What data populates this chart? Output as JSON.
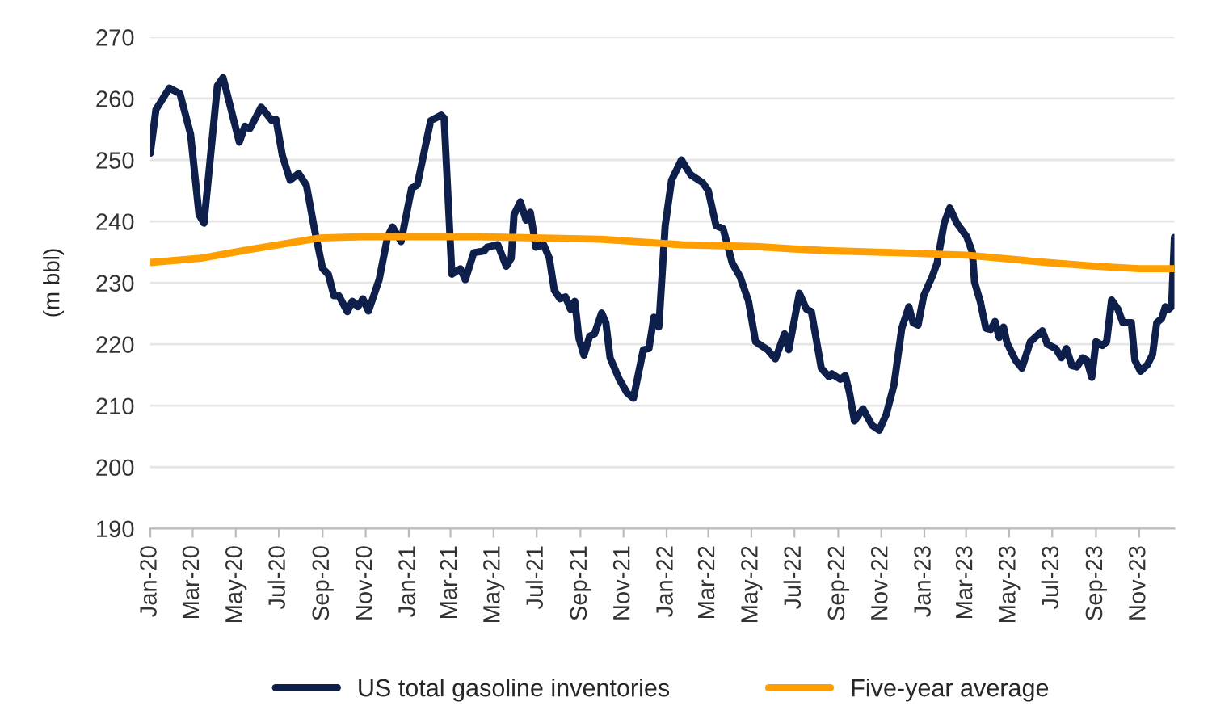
{
  "chart_data": {
    "type": "line",
    "ylabel": "(m bbl)",
    "xlim": [
      "2020-01-01",
      "2023-12-21"
    ],
    "ylim": [
      190,
      270
    ],
    "yticks": [
      190,
      200,
      210,
      220,
      230,
      240,
      250,
      260,
      270
    ],
    "xticks": [
      {
        "value": "2020-01-01",
        "label": "Jan-20"
      },
      {
        "value": "2020-03-01",
        "label": "Mar-20"
      },
      {
        "value": "2020-05-01",
        "label": "May-20"
      },
      {
        "value": "2020-07-01",
        "label": "Jul-20"
      },
      {
        "value": "2020-09-01",
        "label": "Sep-20"
      },
      {
        "value": "2020-11-01",
        "label": "Nov-20"
      },
      {
        "value": "2021-01-01",
        "label": "Jan-21"
      },
      {
        "value": "2021-03-01",
        "label": "Mar-21"
      },
      {
        "value": "2021-05-01",
        "label": "May-21"
      },
      {
        "value": "2021-07-01",
        "label": "Jul-21"
      },
      {
        "value": "2021-09-01",
        "label": "Sep-21"
      },
      {
        "value": "2021-11-01",
        "label": "Nov-21"
      },
      {
        "value": "2022-01-01",
        "label": "Jan-22"
      },
      {
        "value": "2022-03-01",
        "label": "Mar-22"
      },
      {
        "value": "2022-05-01",
        "label": "May-22"
      },
      {
        "value": "2022-07-01",
        "label": "Jul-22"
      },
      {
        "value": "2022-09-01",
        "label": "Sep-22"
      },
      {
        "value": "2022-11-01",
        "label": "Nov-22"
      },
      {
        "value": "2023-01-01",
        "label": "Jan-23"
      },
      {
        "value": "2023-03-01",
        "label": "Mar-23"
      },
      {
        "value": "2023-05-01",
        "label": "May-23"
      },
      {
        "value": "2023-07-01",
        "label": "Jul-23"
      },
      {
        "value": "2023-09-01",
        "label": "Sep-23"
      },
      {
        "value": "2023-11-01",
        "label": "Nov-23"
      }
    ],
    "grid": "y",
    "legend": "bottom",
    "marker": "none",
    "line_style": "solid",
    "series": [
      {
        "name": "US total gasoline inventories",
        "color": "#0d1f4a",
        "x": [
          "2020-01-01",
          "2020-01-09",
          "2020-01-28",
          "2020-02-12",
          "2020-02-27",
          "2020-03-10",
          "2020-03-17",
          "2020-04-05",
          "2020-04-13",
          "2020-05-06",
          "2020-05-14",
          "2020-05-21",
          "2020-06-06",
          "2020-06-21",
          "2020-06-27",
          "2020-07-06",
          "2020-07-17",
          "2020-07-29",
          "2020-08-09",
          "2020-08-21",
          "2020-09-01",
          "2020-09-09",
          "2020-09-17",
          "2020-09-24",
          "2020-10-06",
          "2020-10-13",
          "2020-10-21",
          "2020-10-28",
          "2020-11-05",
          "2020-11-20",
          "2020-12-02",
          "2020-12-09",
          "2020-12-21",
          "2021-01-05",
          "2021-01-13",
          "2021-02-01",
          "2021-02-16",
          "2021-02-20",
          "2021-03-03",
          "2021-03-15",
          "2021-03-22",
          "2021-04-03",
          "2021-04-18",
          "2021-04-22",
          "2021-05-07",
          "2021-05-19",
          "2021-05-26",
          "2021-05-30",
          "2021-06-08",
          "2021-06-16",
          "2021-06-22",
          "2021-06-30",
          "2021-07-11",
          "2021-07-19",
          "2021-07-26",
          "2021-08-03",
          "2021-08-11",
          "2021-08-18",
          "2021-08-24",
          "2021-08-30",
          "2021-09-06",
          "2021-09-14",
          "2021-09-21",
          "2021-10-01",
          "2021-10-07",
          "2021-10-13",
          "2021-10-26",
          "2021-11-06",
          "2021-11-15",
          "2021-11-29",
          "2021-12-07",
          "2021-12-14",
          "2021-12-21",
          "2021-12-30",
          "2022-01-08",
          "2022-01-22",
          "2022-02-04",
          "2022-02-21",
          "2022-03-01",
          "2022-03-12",
          "2022-03-22",
          "2022-04-04",
          "2022-04-15",
          "2022-04-27",
          "2022-05-07",
          "2022-05-24",
          "2022-06-04",
          "2022-06-17",
          "2022-06-23",
          "2022-07-08",
          "2022-07-18",
          "2022-07-25",
          "2022-08-08",
          "2022-08-19",
          "2022-08-23",
          "2022-09-04",
          "2022-09-11",
          "2022-09-17",
          "2022-09-24",
          "2022-10-06",
          "2022-10-19",
          "2022-10-29",
          "2022-11-08",
          "2022-11-19",
          "2022-11-30",
          "2022-12-10",
          "2022-12-16",
          "2022-12-23",
          "2022-12-31",
          "2023-01-12",
          "2023-01-19",
          "2023-01-29",
          "2023-02-06",
          "2023-02-16",
          "2023-03-02",
          "2023-03-10",
          "2023-03-13",
          "2023-03-21",
          "2023-03-29",
          "2023-04-05",
          "2023-04-11",
          "2023-04-17",
          "2023-04-23",
          "2023-04-28",
          "2023-05-10",
          "2023-05-19",
          "2023-05-31",
          "2023-06-17",
          "2023-06-24",
          "2023-07-06",
          "2023-07-14",
          "2023-07-21",
          "2023-07-29",
          "2023-08-05",
          "2023-08-13",
          "2023-08-19",
          "2023-08-26",
          "2023-09-01",
          "2023-09-10",
          "2023-09-16",
          "2023-09-23",
          "2023-10-02",
          "2023-10-09",
          "2023-10-21",
          "2023-10-26",
          "2023-11-03",
          "2023-11-13",
          "2023-11-20",
          "2023-11-26",
          "2023-12-03",
          "2023-12-08",
          "2023-12-13",
          "2023-12-17",
          "2023-12-21"
        ],
        "values": [
          251.1,
          258.2,
          261.7,
          260.8,
          254.2,
          241.1,
          239.7,
          262.1,
          263.4,
          252.9,
          255.5,
          255.1,
          258.6,
          256.4,
          256.6,
          250.7,
          246.7,
          247.8,
          245.9,
          238.4,
          232.3,
          231.4,
          227.9,
          227.9,
          225.3,
          227.0,
          226.1,
          227.4,
          225.4,
          230.5,
          237.5,
          239.1,
          236.7,
          245.4,
          245.9,
          256.4,
          257.3,
          256.8,
          231.4,
          232.3,
          230.5,
          234.9,
          235.2,
          235.8,
          236.2,
          232.7,
          234.0,
          241.1,
          243.2,
          240.2,
          241.5,
          235.8,
          236.2,
          234.0,
          228.8,
          227.4,
          227.7,
          225.7,
          227.0,
          220.9,
          218.2,
          221.3,
          221.7,
          225.1,
          223.5,
          217.8,
          214.3,
          212.1,
          211.2,
          219.1,
          219.3,
          224.4,
          222.8,
          239.3,
          246.7,
          250.0,
          247.6,
          246.3,
          245.0,
          239.3,
          238.8,
          233.2,
          231.0,
          227.0,
          220.4,
          219.1,
          217.6,
          221.7,
          219.1,
          228.3,
          225.7,
          225.3,
          216.1,
          214.7,
          215.2,
          214.3,
          214.9,
          212.1,
          207.5,
          209.5,
          206.8,
          206.0,
          208.6,
          213.4,
          222.6,
          226.1,
          223.5,
          223.1,
          227.9,
          231.0,
          233.2,
          239.7,
          242.2,
          239.7,
          237.5,
          234.9,
          230.1,
          227.0,
          222.6,
          222.4,
          223.7,
          221.1,
          222.8,
          220.2,
          217.4,
          216.1,
          220.4,
          222.2,
          220.0,
          219.3,
          217.8,
          219.3,
          216.5,
          216.3,
          217.8,
          217.4,
          214.6,
          220.4,
          219.8,
          220.4,
          227.2,
          225.7,
          223.5,
          223.5,
          217.4,
          215.6,
          216.7,
          218.3,
          223.5,
          224.2,
          226.1,
          225.7,
          226.1,
          237.4
        ]
      },
      {
        "name": "Five-year average",
        "color": "#ff9e00",
        "x": [
          "2020-01-01",
          "2020-03-13",
          "2020-05-14",
          "2020-08-28",
          "2020-10-28",
          "2021-02-27",
          "2021-04-07",
          "2021-09-29",
          "2022-01-22",
          "2022-05-08",
          "2022-07-01",
          "2022-08-23",
          "2022-11-23",
          "2023-03-02",
          "2023-06-24",
          "2023-09-01",
          "2023-11-01",
          "2023-12-21"
        ],
        "values": [
          233.3,
          234.0,
          235.3,
          237.3,
          237.5,
          237.5,
          237.5,
          237.1,
          236.2,
          235.9,
          235.5,
          235.2,
          234.9,
          234.5,
          233.3,
          232.7,
          232.3,
          232.3
        ]
      }
    ]
  }
}
